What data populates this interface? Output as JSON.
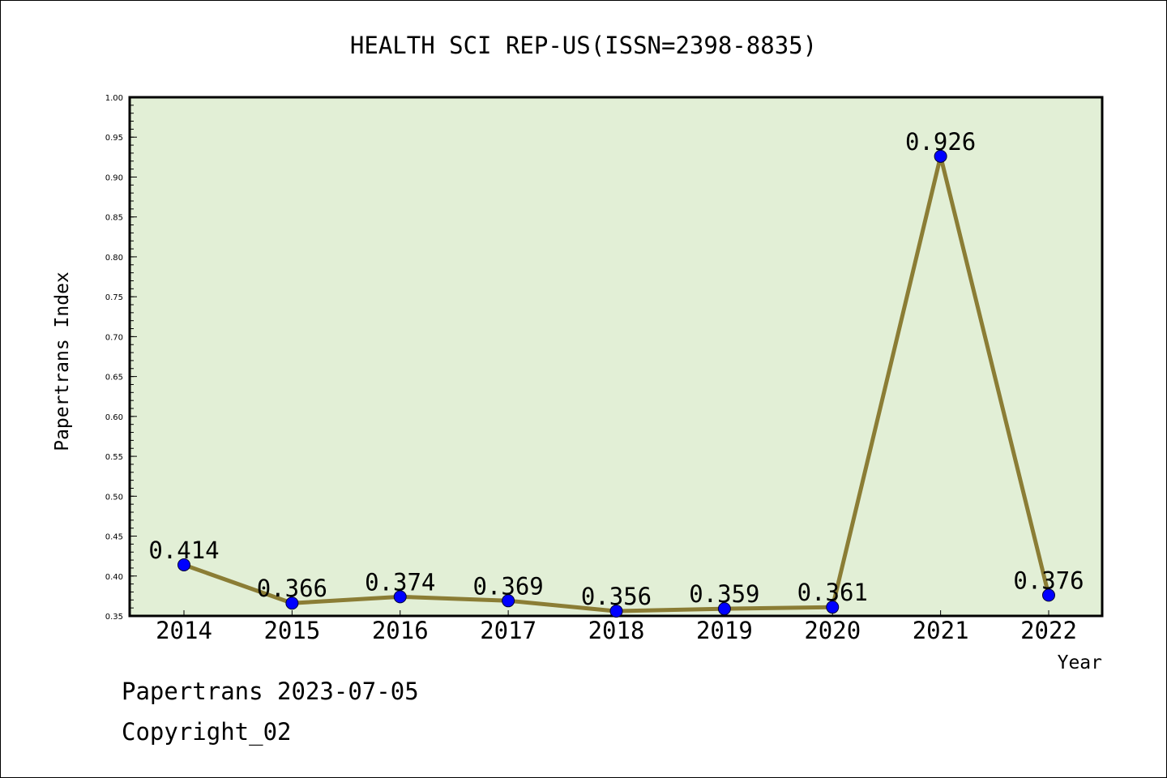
{
  "chart_data": {
    "type": "line",
    "title": "HEALTH SCI REP-US(ISSN=2398-8835)",
    "xlabel": "Year",
    "ylabel": "Papertrans Index",
    "categories": [
      "2014",
      "2015",
      "2016",
      "2017",
      "2018",
      "2019",
      "2020",
      "2021",
      "2022"
    ],
    "series": [
      {
        "values": [
          0.414,
          0.366,
          0.374,
          0.369,
          0.356,
          0.359,
          0.361,
          0.926,
          0.376
        ],
        "labels": [
          "0.414",
          "0.366",
          "0.374",
          "0.369",
          "0.356",
          "0.359",
          "0.361",
          "0.926",
          "0.376"
        ]
      }
    ],
    "ylim": [
      0.35,
      1.0
    ],
    "yticks": [
      "0.35",
      "0.40",
      "0.45",
      "0.50",
      "0.55",
      "0.60",
      "0.65",
      "0.70",
      "0.75",
      "0.80",
      "0.85",
      "0.90",
      "0.95",
      "1.00"
    ],
    "grid": false,
    "colors": {
      "plot_background": "#e2efd6",
      "line": "#8b7d35",
      "marker": "#0000ff"
    }
  },
  "footer": {
    "source": "Papertrans 2023-07-05",
    "copyright": "Copyright_02"
  }
}
